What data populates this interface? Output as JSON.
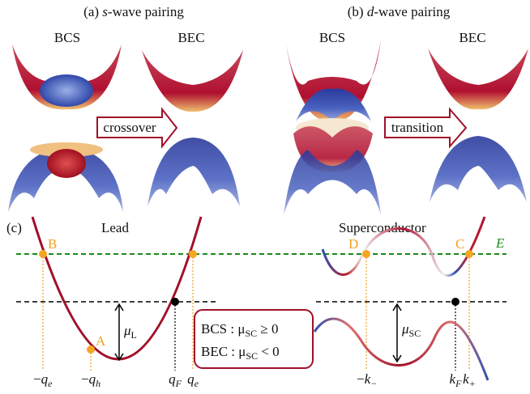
{
  "panel_a": {
    "title": {
      "prefix": "(a) ",
      "italic": "s",
      "suffix": "-wave pairing"
    },
    "left_label": "BCS",
    "right_label": "BEC",
    "arrow_label": "crossover"
  },
  "panel_b": {
    "title": {
      "prefix": "(b) ",
      "italic": "d",
      "suffix": "-wave pairing"
    },
    "left_label": "BCS",
    "right_label": "BEC",
    "arrow_label": "transition"
  },
  "panel_c": {
    "label": "(c)",
    "lead_label": "Lead",
    "sc_label": "Superconductor",
    "energy_label": "E",
    "points": [
      "A",
      "B",
      "C",
      "D"
    ],
    "mu_lead": {
      "symbol": "μ",
      "subscript": "L"
    },
    "mu_sc": {
      "symbol": "μ",
      "subscript": "SC"
    },
    "box": [
      {
        "before": "BCS : μ",
        "subscript": "SC",
        "after": " ≥ 0"
      },
      {
        "before": "BEC : μ",
        "subscript": "SC",
        "after": " < 0"
      }
    ],
    "ticks": [
      {
        "sign": "−",
        "symbol": "q",
        "subscript": "e"
      },
      {
        "sign": "−",
        "symbol": "q",
        "subscript": "h"
      },
      {
        "symbol": "q",
        "subscript": "F"
      },
      {
        "symbol": "q",
        "subscript": "e"
      },
      {
        "sign": "−",
        "symbol": "k",
        "subscript": "−"
      },
      {
        "symbol": "k",
        "subscript": "F"
      },
      {
        "symbol": "k",
        "subscript": "+"
      }
    ]
  }
}
